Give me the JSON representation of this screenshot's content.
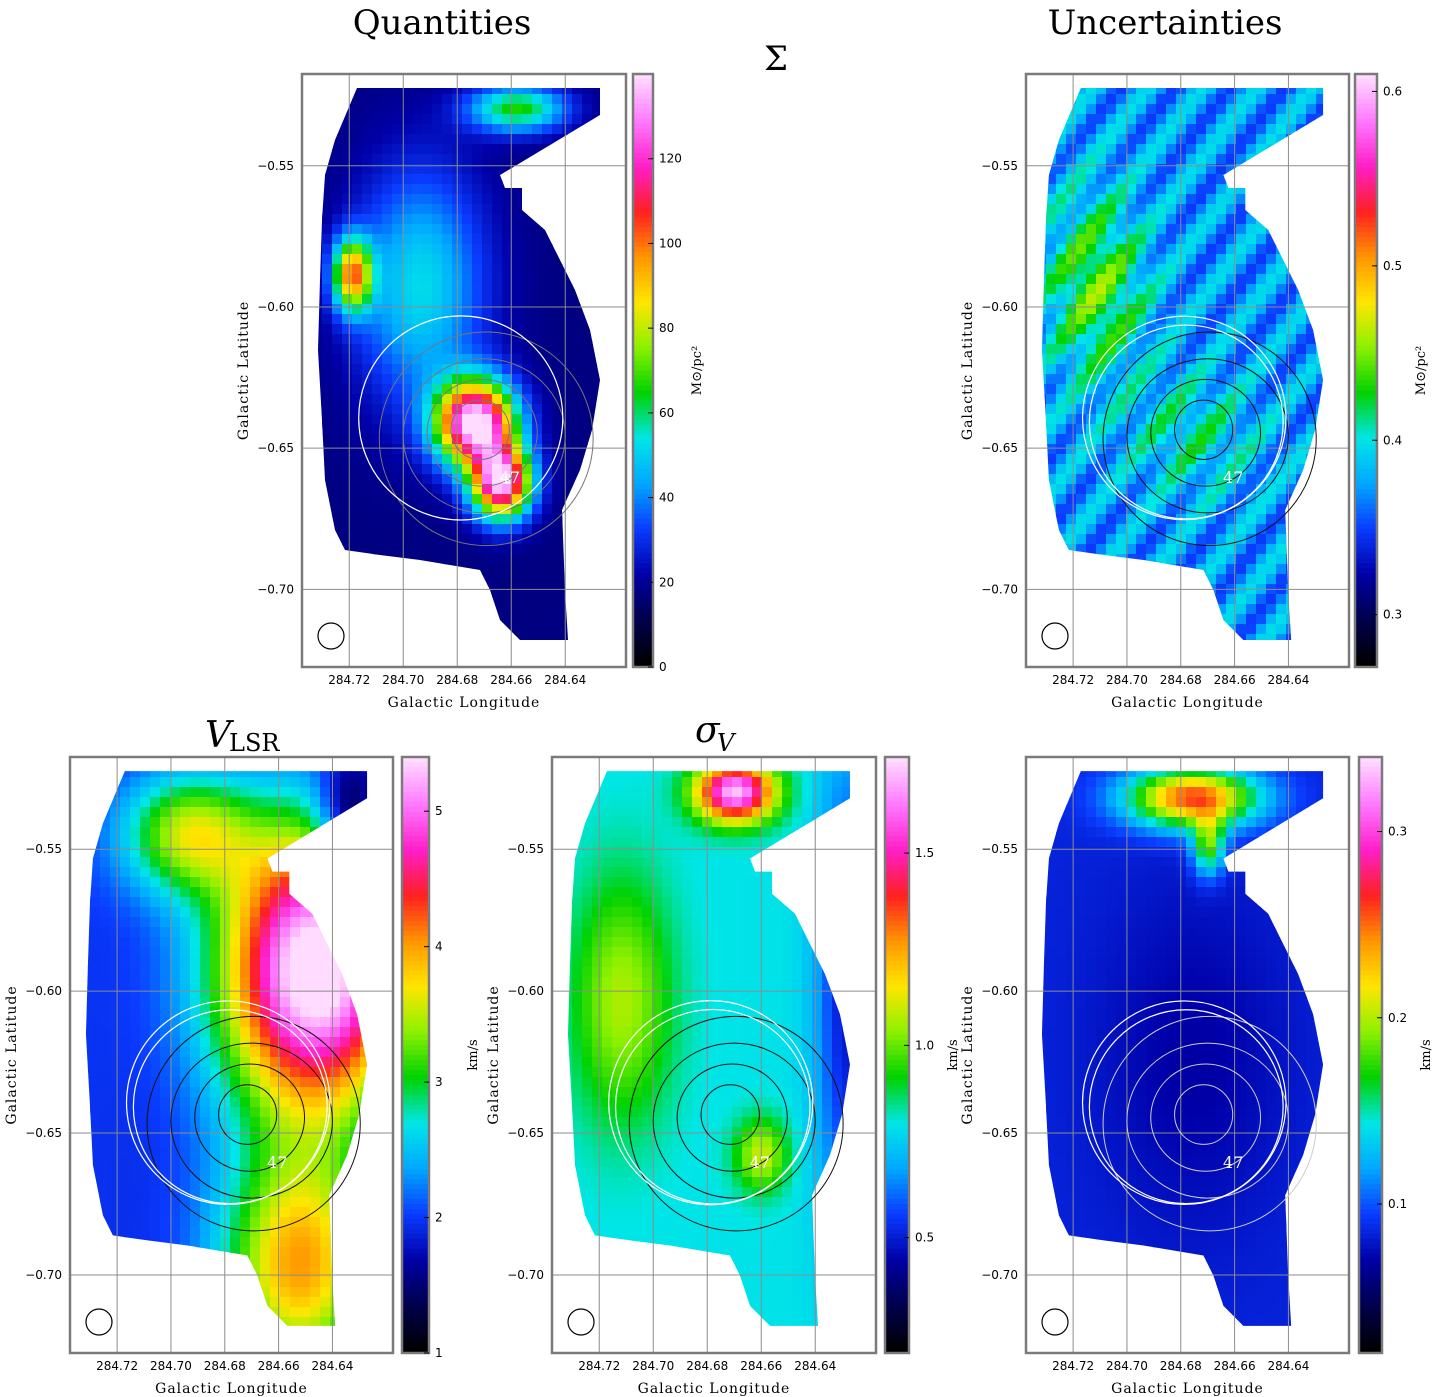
{
  "titles": {
    "quantities": "Quantities",
    "uncertainties": "Uncertainties",
    "sigma_symbol": "Σ",
    "vlsr_main": "V",
    "vlsr_sub": "LSR",
    "sigmav_main": "σ",
    "sigmav_sub": "V"
  },
  "source_label": "47",
  "colormap": [
    "#000000",
    "#00004d",
    "#0000a8",
    "#0a3cff",
    "#00a8ff",
    "#00e6e6",
    "#00d200",
    "#8cf000",
    "#ffe600",
    "#ff9600",
    "#ff2020",
    "#ff1ec8",
    "#ff78ff",
    "#ffdcff"
  ],
  "chart_data": [
    {
      "type": "heatmap",
      "panel": "sigma",
      "title": "Σ",
      "xlabel": "Galactic Longitude",
      "ylabel": "Galactic Latitude",
      "x_ticks": [
        "284.72",
        "284.70",
        "284.68",
        "284.66",
        "284.64"
      ],
      "y_ticks": [
        "−0.55",
        "−0.60",
        "−0.65",
        "−0.70"
      ],
      "xlim": [
        284.7375,
        284.6175
      ],
      "ylim": [
        -0.7275,
        -0.5175
      ],
      "colorbar": {
        "label": "M⊙/pc²",
        "ticks": [
          "0",
          "20",
          "40",
          "60",
          "80",
          "100",
          "120"
        ],
        "tick_values": [
          0,
          20,
          40,
          60,
          80,
          100,
          120
        ],
        "range": [
          0,
          140
        ]
      }
    },
    {
      "type": "heatmap",
      "panel": "sigma_uncertainty",
      "title": "",
      "xlabel": "Galactic Longitude",
      "ylabel": "Galactic Latitude",
      "x_ticks": [
        "284.72",
        "284.70",
        "284.68",
        "284.66",
        "284.64"
      ],
      "y_ticks": [
        "−0.55",
        "−0.60",
        "−0.65",
        "−0.70"
      ],
      "xlim": [
        284.7375,
        284.6175
      ],
      "ylim": [
        -0.7275,
        -0.5175
      ],
      "colorbar": {
        "label": "M⊙/pc²",
        "ticks": [
          "0.3",
          "0.4",
          "0.5",
          "0.6"
        ],
        "tick_values": [
          0.3,
          0.4,
          0.5,
          0.6
        ],
        "range": [
          0.27,
          0.61
        ]
      }
    },
    {
      "type": "heatmap",
      "panel": "vlsr",
      "title": "V_LSR",
      "xlabel": "Galactic Longitude",
      "ylabel": "Galactic Latitude",
      "x_ticks": [
        "284.72",
        "284.70",
        "284.68",
        "284.66",
        "284.64"
      ],
      "y_ticks": [
        "−0.55",
        "−0.60",
        "−0.65",
        "−0.70"
      ],
      "xlim": [
        284.7375,
        284.6175
      ],
      "ylim": [
        -0.7275,
        -0.5175
      ],
      "colorbar": {
        "label": "km/s",
        "ticks": [
          "1",
          "2",
          "3",
          "4",
          "5"
        ],
        "tick_values": [
          1,
          2,
          3,
          4,
          5
        ],
        "range": [
          1,
          5.4
        ]
      }
    },
    {
      "type": "heatmap",
      "panel": "sigma_v",
      "title": "σ_V",
      "xlabel": "Galactic Longitude",
      "ylabel": "Galactic Latitude",
      "x_ticks": [
        "284.72",
        "284.70",
        "284.68",
        "284.66",
        "284.64"
      ],
      "y_ticks": [
        "−0.55",
        "−0.60",
        "−0.65",
        "−0.70"
      ],
      "xlim": [
        284.7375,
        284.6175
      ],
      "ylim": [
        -0.7275,
        -0.5175
      ],
      "colorbar": {
        "label": "km/s",
        "ticks": [
          "0.5",
          "1.0",
          "1.5"
        ],
        "tick_values": [
          0.5,
          1.0,
          1.5
        ],
        "range": [
          0.2,
          1.75
        ]
      }
    },
    {
      "type": "heatmap",
      "panel": "sigma_v_uncertainty",
      "title": "",
      "xlabel": "Galactic Longitude",
      "ylabel": "Galactic Latitude",
      "x_ticks": [
        "284.72",
        "284.70",
        "284.68",
        "284.66",
        "284.64"
      ],
      "y_ticks": [
        "−0.55",
        "−0.60",
        "−0.65",
        "−0.70"
      ],
      "xlim": [
        284.7375,
        284.6175
      ],
      "ylim": [
        -0.7275,
        -0.5175
      ],
      "colorbar": {
        "label": "km/s",
        "ticks": [
          "0.1",
          "0.2",
          "0.3"
        ],
        "tick_values": [
          0.1,
          0.2,
          0.3
        ],
        "range": [
          0.02,
          0.34
        ]
      }
    }
  ]
}
